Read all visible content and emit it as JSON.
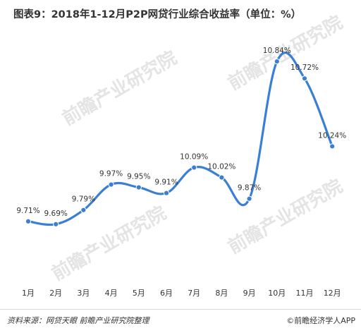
{
  "title": "图表9：2018年1-12月P2P网贷行业综合收益率（单位：%）",
  "watermark": "前瞻产业研究院",
  "footer": {
    "source": "资料来源：网贷天眼  前瞻产业研究院整理",
    "brand": "©前瞻经济学人APP"
  },
  "colors": {
    "line": "#3a7fd5",
    "watermark": "#e4e4e4"
  },
  "chart_data": {
    "type": "line",
    "categories": [
      "1月",
      "2月",
      "3月",
      "4月",
      "5月",
      "6月",
      "7月",
      "8月",
      "9月",
      "10月",
      "11月",
      "12月"
    ],
    "values": [
      9.71,
      9.69,
      9.79,
      9.97,
      9.95,
      9.91,
      10.09,
      10.02,
      9.87,
      10.84,
      10.72,
      10.24
    ],
    "data_labels": [
      "9.71%",
      "9.69%",
      "9.79%",
      "9.97%",
      "9.95%",
      "9.91%",
      "10.09%",
      "10.02%",
      "9.87%",
      "10.84%",
      "10.72%",
      "10.24%"
    ],
    "ylim": [
      9.3,
      11.0
    ],
    "grid": false,
    "smooth": true
  }
}
